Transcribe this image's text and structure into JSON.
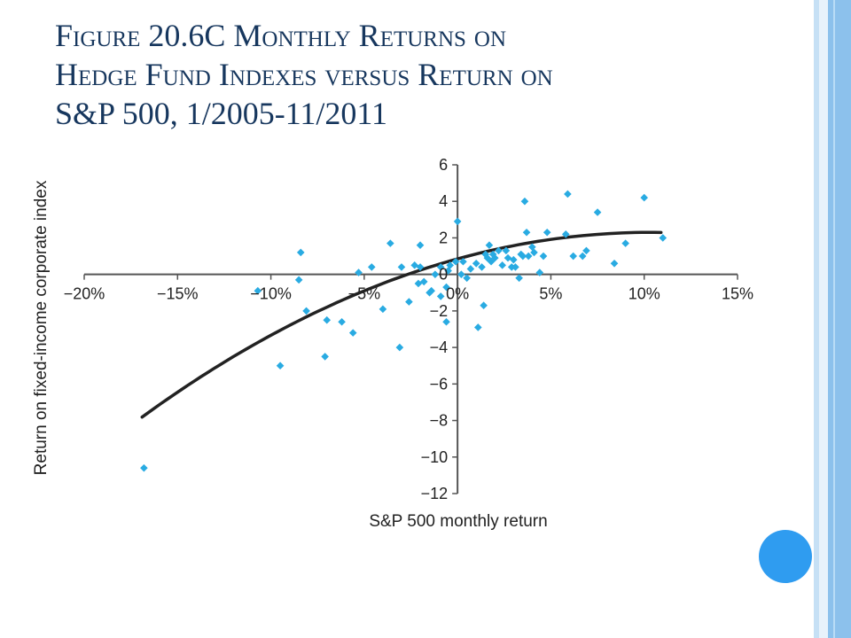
{
  "slide": {
    "title_lines": [
      "Figure 20.6C Monthly Returns on",
      "Hedge Fund Indexes versus Return on",
      "S&P 500, 1/2005-11/2011"
    ]
  },
  "chart_data": {
    "type": "scatter",
    "xlabel": "S&P 500 monthly return",
    "ylabel": "Return on fixed-income corporate index",
    "xlim": [
      -20,
      15
    ],
    "ylim": [
      -12,
      6
    ],
    "x_ticks": [
      -20,
      -15,
      -10,
      -5,
      0,
      5,
      10,
      15
    ],
    "x_tick_labels": [
      "−20%",
      "−15%",
      "−10%",
      "−5%",
      "0%",
      "5%",
      "10%",
      "15%"
    ],
    "y_ticks": [
      6,
      4,
      2,
      0,
      -2,
      -4,
      -6,
      -8,
      -10,
      -12
    ],
    "y_tick_labels": [
      "6",
      "4",
      "2",
      "0",
      "−2",
      "−4",
      "−6",
      "−8",
      "−10",
      "−12"
    ],
    "grid": false,
    "colors": {
      "points": "#29abe2",
      "curve": "#222222",
      "axis": "#555555"
    },
    "points": [
      [
        -16.8,
        -10.6
      ],
      [
        -9.5,
        -5.0
      ],
      [
        -7.1,
        -4.5
      ],
      [
        -10.7,
        -0.9
      ],
      [
        -8.5,
        -0.3
      ],
      [
        -8.4,
        1.2
      ],
      [
        -8.1,
        -2.0
      ],
      [
        -7.0,
        -2.5
      ],
      [
        -6.2,
        -2.6
      ],
      [
        -5.6,
        -3.2
      ],
      [
        -5.3,
        0.1
      ],
      [
        -4.6,
        0.4
      ],
      [
        -4.0,
        -1.9
      ],
      [
        -3.6,
        1.7
      ],
      [
        -3.1,
        -4.0
      ],
      [
        -3.0,
        0.4
      ],
      [
        -2.6,
        -1.5
      ],
      [
        -2.3,
        0.5
      ],
      [
        -2.1,
        -0.5
      ],
      [
        -2.0,
        1.6
      ],
      [
        -2.0,
        0.4
      ],
      [
        -1.8,
        -0.4
      ],
      [
        -1.5,
        -1.0
      ],
      [
        -1.4,
        -0.9
      ],
      [
        -1.2,
        0.0
      ],
      [
        -0.9,
        0.4
      ],
      [
        -0.9,
        -1.2
      ],
      [
        -0.6,
        -2.6
      ],
      [
        -0.6,
        -0.7
      ],
      [
        -0.5,
        0.2
      ],
      [
        -0.4,
        0.5
      ],
      [
        -0.1,
        0.7
      ],
      [
        0.0,
        2.9
      ],
      [
        0.2,
        0.0
      ],
      [
        0.3,
        0.7
      ],
      [
        0.5,
        -0.2
      ],
      [
        0.7,
        0.3
      ],
      [
        1.0,
        0.6
      ],
      [
        1.1,
        -2.9
      ],
      [
        1.3,
        0.4
      ],
      [
        1.4,
        -1.7
      ],
      [
        1.5,
        1.1
      ],
      [
        1.6,
        0.9
      ],
      [
        1.7,
        1.6
      ],
      [
        1.8,
        0.7
      ],
      [
        1.9,
        1.1
      ],
      [
        2.0,
        0.9
      ],
      [
        2.2,
        1.3
      ],
      [
        2.4,
        0.5
      ],
      [
        2.6,
        1.3
      ],
      [
        2.7,
        0.9
      ],
      [
        2.9,
        0.4
      ],
      [
        3.0,
        0.8
      ],
      [
        3.1,
        0.4
      ],
      [
        3.3,
        -0.2
      ],
      [
        3.4,
        1.1
      ],
      [
        3.5,
        1.0
      ],
      [
        3.6,
        4.0
      ],
      [
        3.7,
        2.3
      ],
      [
        3.8,
        1.0
      ],
      [
        4.0,
        1.5
      ],
      [
        4.1,
        1.2
      ],
      [
        4.4,
        0.1
      ],
      [
        4.6,
        1.0
      ],
      [
        4.8,
        2.3
      ],
      [
        5.8,
        2.2
      ],
      [
        5.9,
        4.4
      ],
      [
        6.2,
        1.0
      ],
      [
        6.7,
        1.0
      ],
      [
        6.9,
        1.3
      ],
      [
        7.5,
        3.4
      ],
      [
        8.4,
        0.6
      ],
      [
        9.0,
        1.7
      ],
      [
        10.0,
        4.2
      ],
      [
        11.0,
        2.0
      ]
    ],
    "fit_curve": {
      "x_range": [
        -16.9,
        10.9
      ],
      "vertex": [
        10.3,
        2.3
      ],
      "a": -0.01367
    }
  }
}
